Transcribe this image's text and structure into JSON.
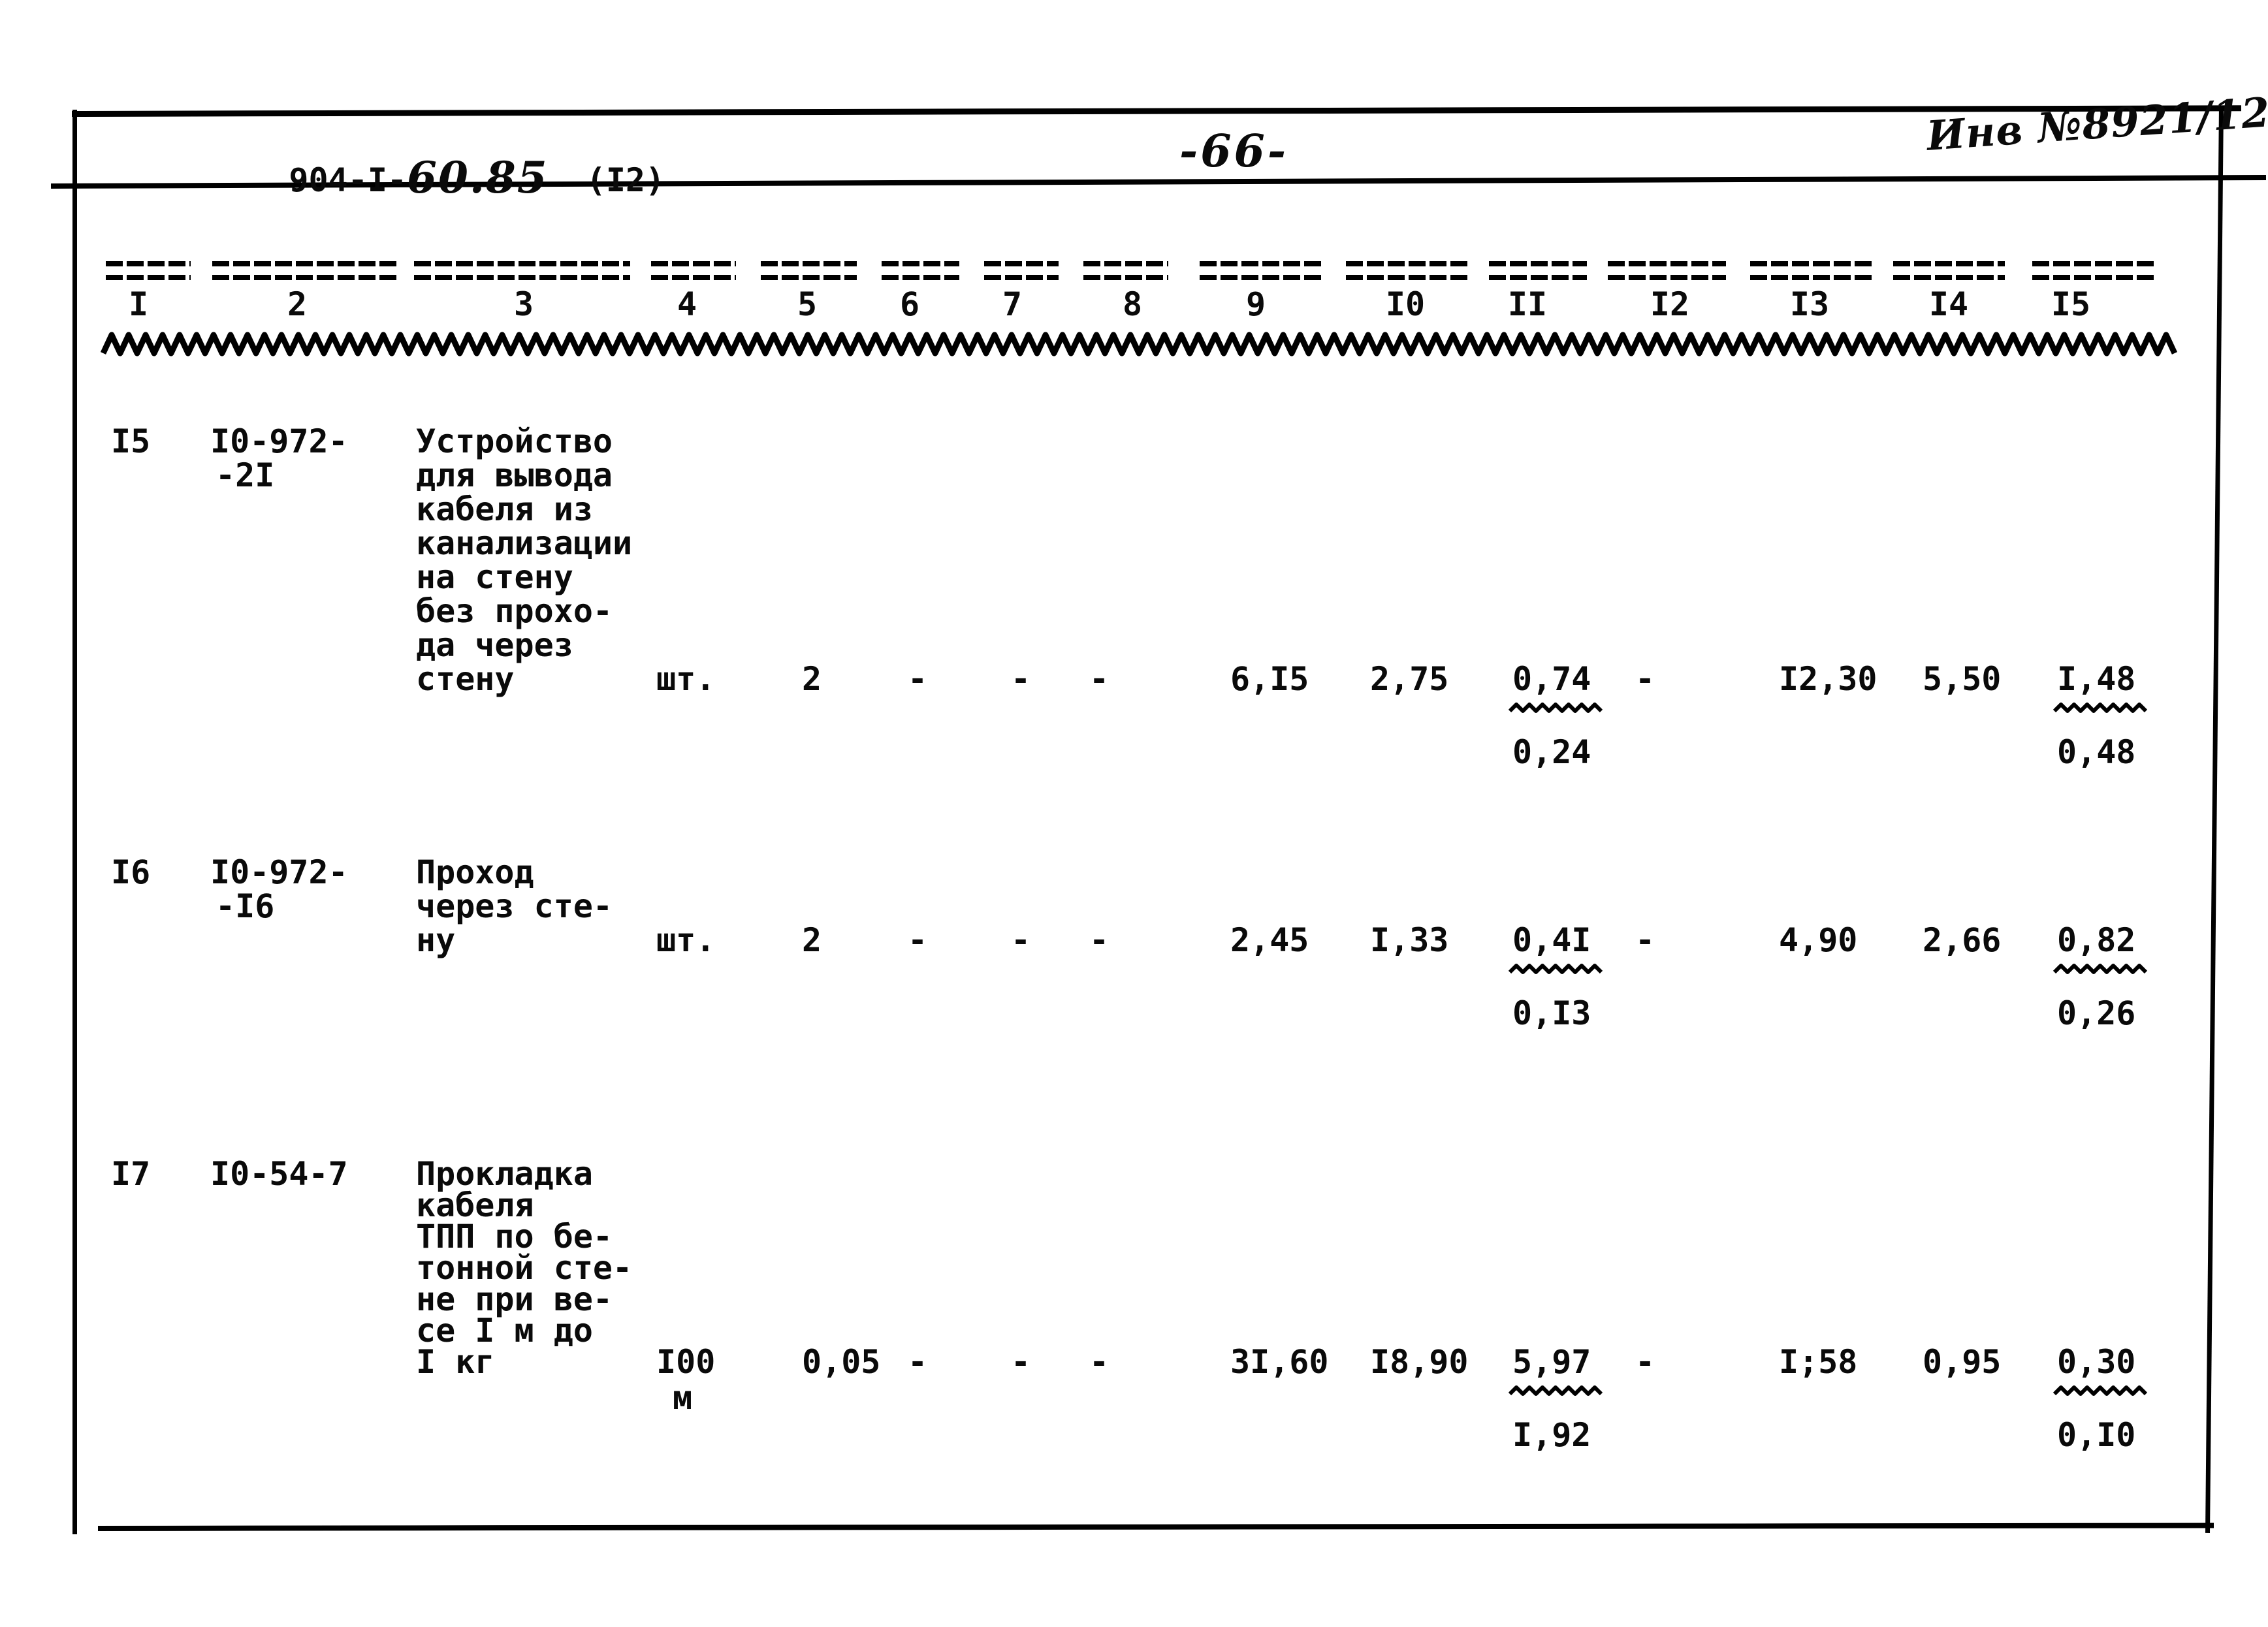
{
  "page": {
    "code_prefix": "904-I-",
    "code_hand": "60.85",
    "code_suffix": "(I2)",
    "page_number": "-66-",
    "stamp": "Инв №8921/12"
  },
  "table": {
    "columns": [
      "I",
      "2",
      "3",
      "4",
      "5",
      "6",
      "7",
      "8",
      "9",
      "I0",
      "II",
      "I2",
      "I3",
      "I4",
      "I5"
    ],
    "rows": [
      {
        "num": "I5",
        "code_lines": [
          "I0-972-",
          "-2I"
        ],
        "name_lines": [
          "Устройство",
          "для вывода",
          "кабеля из",
          "канализации",
          "на стену",
          "без прохо-",
          "да через",
          "стену"
        ],
        "unit_lines": [
          "шт."
        ],
        "values": {
          "qty": "2",
          "c6": "-",
          "c7": "-",
          "c8": "-",
          "c9": "6,I5",
          "c10": "2,75",
          "c11": {
            "top": "0,74",
            "bottom": "0,24"
          },
          "c12": "-",
          "c13": "I2,30",
          "c14": "5,50",
          "c15": {
            "top": "I,48",
            "bottom": "0,48"
          }
        }
      },
      {
        "num": "I6",
        "code_lines": [
          "I0-972-",
          "-I6"
        ],
        "name_lines": [
          "Проход",
          "через сте-",
          "ну"
        ],
        "unit_lines": [
          "шт."
        ],
        "values": {
          "qty": "2",
          "c6": "-",
          "c7": "-",
          "c8": "-",
          "c9": "2,45",
          "c10": "I,33",
          "c11": {
            "top": "0,4I",
            "bottom": "0,I3"
          },
          "c12": "-",
          "c13": "4,90",
          "c14": "2,66",
          "c15": {
            "top": "0,82",
            "bottom": "0,26"
          }
        }
      },
      {
        "num": "I7",
        "code_lines": [
          "I0-54-7"
        ],
        "name_lines": [
          "Прокладка",
          "кабеля",
          "ТПП по бе-",
          "тонной сте-",
          "не при ве-",
          "се I м до",
          "I кг"
        ],
        "unit_lines": [
          "I00",
          "м"
        ],
        "values": {
          "qty": "0,05",
          "c6": "-",
          "c7": "-",
          "c8": "-",
          "c9": "3I,60",
          "c10": "I8,90",
          "c11": {
            "top": "5,97",
            "bottom": "I,92"
          },
          "c12": "-",
          "c13": "I;58",
          "c14": "0,95",
          "c15": {
            "top": "0,30",
            "bottom": "0,I0"
          }
        }
      }
    ]
  }
}
